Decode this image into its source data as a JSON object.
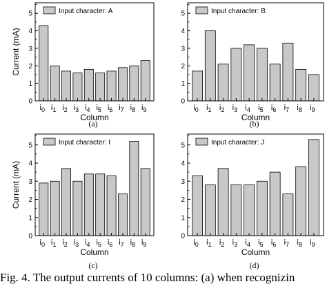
{
  "figure": {
    "caption": "Fig. 4. The output currents of 10 columns: (a) when recognizin"
  },
  "chart_data": [
    {
      "type": "bar",
      "panel_label": "(a)",
      "legend_label": "Input character: A",
      "legend_position": "top",
      "categories": [
        "i0",
        "i1",
        "i2",
        "i3",
        "i4",
        "i5",
        "i6",
        "i7",
        "i8",
        "i9"
      ],
      "values": [
        4.3,
        2.0,
        1.7,
        1.6,
        1.8,
        1.6,
        1.7,
        1.9,
        2.0,
        2.3
      ],
      "xlabel": "Column",
      "ylabel": "Current (mA)",
      "ylim": [
        0,
        5.6
      ],
      "yticks": [
        0,
        1,
        2,
        3,
        4,
        5
      ],
      "grid": false,
      "bar_color": "#c8c8c8"
    },
    {
      "type": "bar",
      "panel_label": "(b)",
      "legend_label": "Input character: B",
      "legend_position": "top",
      "categories": [
        "i0",
        "i1",
        "i2",
        "i3",
        "i4",
        "i5",
        "i6",
        "i7",
        "i8",
        "i9"
      ],
      "values": [
        1.7,
        4.0,
        2.1,
        3.0,
        3.2,
        3.0,
        2.1,
        3.3,
        1.8,
        1.5
      ],
      "xlabel": "Column",
      "ylabel": "",
      "ylim": [
        0,
        5.6
      ],
      "yticks": [
        0,
        1,
        2,
        3,
        4,
        5
      ],
      "grid": false,
      "bar_color": "#c8c8c8"
    },
    {
      "type": "bar",
      "panel_label": "(c)",
      "legend_label": "Input character: I",
      "legend_position": "top",
      "categories": [
        "i0",
        "i1",
        "i2",
        "i3",
        "i4",
        "i5",
        "i6",
        "i7",
        "i8",
        "i9"
      ],
      "values": [
        2.9,
        3.0,
        3.7,
        3.0,
        3.4,
        3.4,
        3.3,
        2.3,
        5.2,
        3.7
      ],
      "xlabel": "Column",
      "ylabel": "Current (mA)",
      "ylim": [
        0,
        5.6
      ],
      "yticks": [
        0,
        1,
        2,
        3,
        4,
        5
      ],
      "grid": false,
      "bar_color": "#c8c8c8"
    },
    {
      "type": "bar",
      "panel_label": "(d)",
      "legend_label": "Input character: J",
      "legend_position": "top",
      "categories": [
        "i0",
        "i1",
        "i2",
        "i3",
        "i4",
        "i5",
        "i6",
        "i7",
        "i8",
        "i9"
      ],
      "values": [
        3.3,
        2.8,
        3.7,
        2.8,
        2.8,
        3.0,
        3.5,
        2.3,
        3.8,
        5.3
      ],
      "xlabel": "Column",
      "ylabel": "",
      "ylim": [
        0,
        5.6
      ],
      "yticks": [
        0,
        1,
        2,
        3,
        4,
        5
      ],
      "grid": false,
      "bar_color": "#c8c8c8"
    }
  ]
}
